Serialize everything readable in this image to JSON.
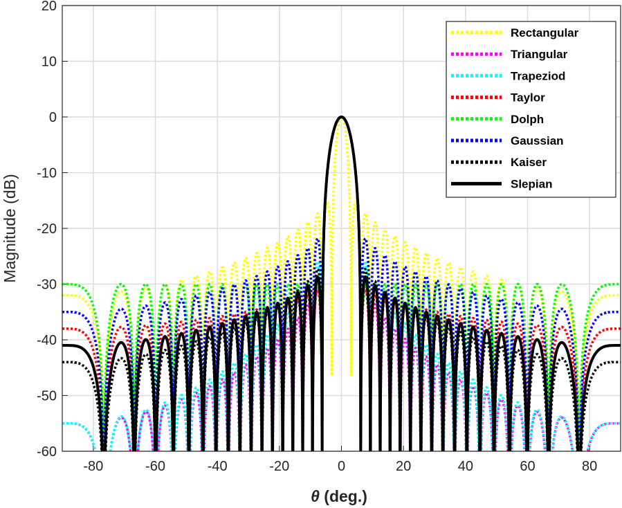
{
  "chart_data": {
    "type": "line",
    "title": "",
    "xlabel_symbol": "θ",
    "xlabel": " (deg.)",
    "ylabel": "Magnitude (dB)",
    "xlim": [
      -90,
      90
    ],
    "ylim": [
      -60,
      20
    ],
    "xticks": [
      -80,
      -60,
      -40,
      -20,
      0,
      20,
      40,
      60,
      80
    ],
    "yticks": [
      -60,
      -50,
      -40,
      -30,
      -20,
      -10,
      0,
      10,
      20
    ],
    "grid": true,
    "legend_position": "top-right",
    "array_elements": 37,
    "series": [
      {
        "name": "Rectangular",
        "color": "#ffff00",
        "style": "dotted",
        "mainlobe_broadening": 1,
        "near_sidelobe_db": -13,
        "far_sidelobe_db": -32
      },
      {
        "name": "Triangular",
        "color": "#ff00ff",
        "style": "dotted",
        "mainlobe_broadening": 2,
        "near_sidelobe_db": -27,
        "far_sidelobe_db": -55
      },
      {
        "name": "Trapeziod",
        "color": "#00ffff",
        "style": "dotted",
        "mainlobe_broadening": 2,
        "near_sidelobe_db": -22,
        "far_sidelobe_db": -55
      },
      {
        "name": "Taylor",
        "color": "#ff0000",
        "style": "dotted",
        "mainlobe_broadening": 2,
        "near_sidelobe_db": -30,
        "far_sidelobe_db": -38
      },
      {
        "name": "Dolph",
        "color": "#00ff00",
        "style": "dotted",
        "mainlobe_broadening": 2,
        "near_sidelobe_db": -30,
        "far_sidelobe_db": -30
      },
      {
        "name": "Gaussian",
        "color": "#0000ff",
        "style": "dotted",
        "mainlobe_broadening": 2,
        "near_sidelobe_db": -20,
        "far_sidelobe_db": -35
      },
      {
        "name": "Kaiser",
        "color": "#000000",
        "style": "dotted",
        "mainlobe_broadening": 2,
        "near_sidelobe_db": -25,
        "far_sidelobe_db": -44
      },
      {
        "name": "Slepian",
        "color": "#000000",
        "style": "solid",
        "mainlobe_broadening": 2,
        "near_sidelobe_db": -27,
        "far_sidelobe_db": -41
      }
    ]
  }
}
